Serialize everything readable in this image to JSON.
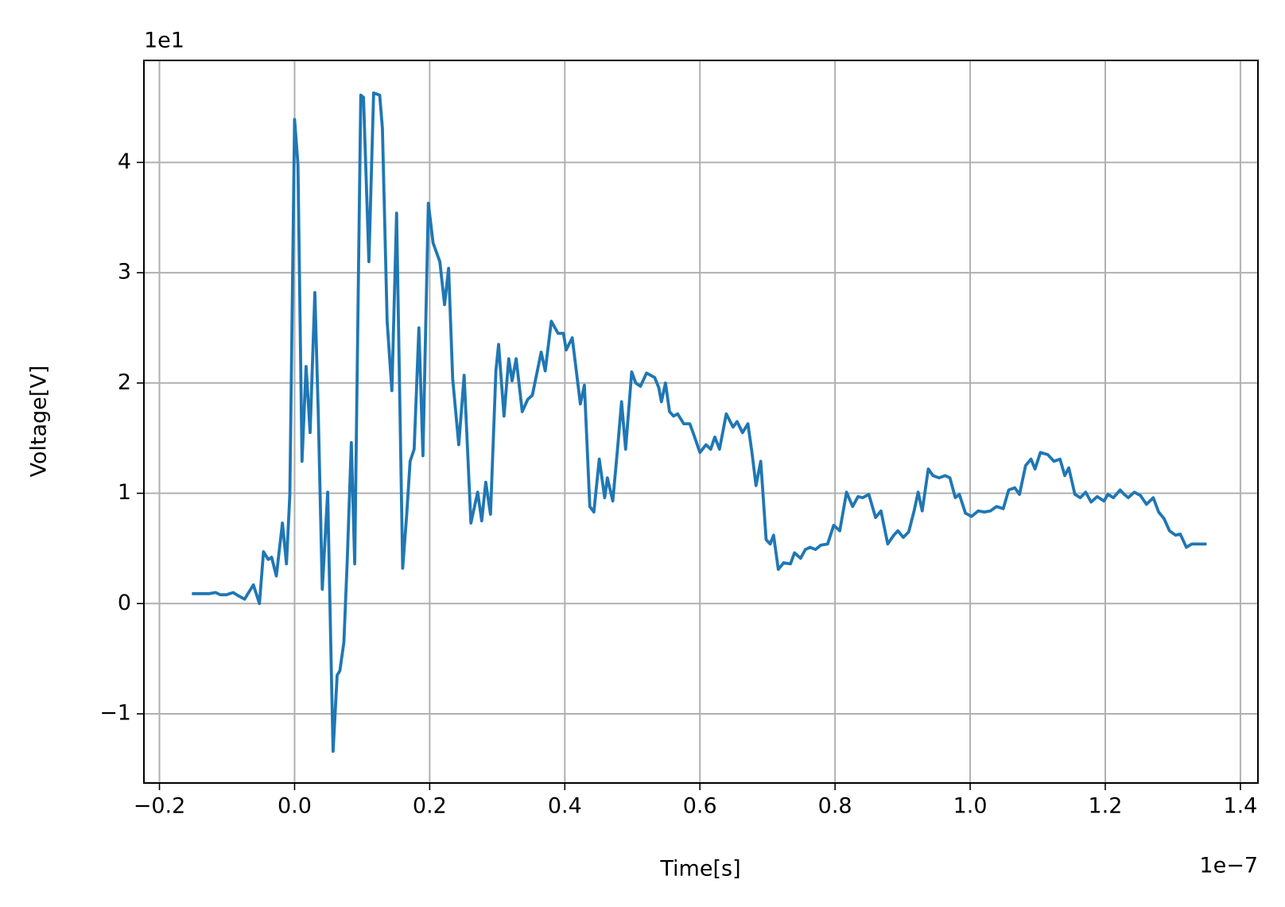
{
  "chart_data": {
    "type": "line",
    "xlabel": "Time[s]",
    "ylabel": "Voltage[V]",
    "x_offset_label": "1e−7",
    "y_offset_label": "1e1",
    "color": "#1f77b4",
    "grid": true,
    "xlim": [
      -0.223,
      1.426
    ],
    "ylim": [
      -1.627,
      4.925
    ],
    "xticks": [
      {
        "value": -0.2,
        "label": "−0.2"
      },
      {
        "value": 0,
        "label": "0.0"
      },
      0.2,
      0.4,
      0.6,
      0.8,
      {
        "value": 1,
        "label": "1.0"
      },
      1.2,
      1.4
    ],
    "yticks": [
      {
        "value": -1,
        "label": "−1"
      },
      0,
      1,
      2,
      3,
      4
    ],
    "x": [
      -0.152,
      -0.138,
      -0.126,
      -0.117,
      -0.11,
      -0.101,
      -0.091,
      -0.083,
      -0.074,
      -0.061,
      -0.052,
      -0.046,
      -0.039,
      -0.034,
      -0.027,
      -0.018,
      -0.012,
      -0.007,
      0.0,
      0.005,
      0.011,
      0.017,
      0.023,
      0.03,
      0.035,
      0.041,
      0.049,
      0.054,
      0.057,
      0.063,
      0.067,
      0.073,
      0.078,
      0.084,
      0.089,
      0.098,
      0.102,
      0.11,
      0.117,
      0.126,
      0.13,
      0.137,
      0.144,
      0.151,
      0.16,
      0.166,
      0.171,
      0.177,
      0.184,
      0.19,
      0.198,
      0.205,
      0.215,
      0.222,
      0.228,
      0.234,
      0.243,
      0.251,
      0.261,
      0.271,
      0.277,
      0.283,
      0.29,
      0.298,
      0.302,
      0.31,
      0.317,
      0.322,
      0.328,
      0.337,
      0.345,
      0.352,
      0.365,
      0.371,
      0.38,
      0.39,
      0.398,
      0.402,
      0.411,
      0.423,
      0.429,
      0.437,
      0.443,
      0.451,
      0.459,
      0.463,
      0.471,
      0.478,
      0.484,
      0.49,
      0.499,
      0.505,
      0.512,
      0.521,
      0.533,
      0.539,
      0.543,
      0.549,
      0.555,
      0.561,
      0.567,
      0.576,
      0.585,
      0.591,
      0.6,
      0.609,
      0.616,
      0.622,
      0.629,
      0.639,
      0.649,
      0.655,
      0.663,
      0.671,
      0.677,
      0.683,
      0.69,
      0.698,
      0.704,
      0.709,
      0.716,
      0.724,
      0.734,
      0.74,
      0.749,
      0.756,
      0.763,
      0.771,
      0.779,
      0.789,
      0.798,
      0.807,
      0.817,
      0.826,
      0.834,
      0.841,
      0.85,
      0.86,
      0.868,
      0.878,
      0.887,
      0.893,
      0.901,
      0.909,
      0.917,
      0.923,
      0.929,
      0.938,
      0.945,
      0.954,
      0.963,
      0.97,
      0.978,
      0.984,
      0.993,
      1.002,
      1.012,
      1.021,
      1.03,
      1.039,
      1.049,
      1.057,
      1.066,
      1.073,
      1.082,
      1.09,
      1.096,
      1.104,
      1.115,
      1.124,
      1.133,
      1.14,
      1.146,
      1.155,
      1.163,
      1.171,
      1.179,
      1.188,
      1.198,
      1.204,
      1.212,
      1.222,
      1.228,
      1.234,
      1.243,
      1.252,
      1.261,
      1.271,
      1.279,
      1.287,
      1.295,
      1.304,
      1.311,
      1.32,
      1.328,
      1.338,
      1.35
    ],
    "values": [
      0.09,
      0.09,
      0.09,
      0.1,
      0.08,
      0.08,
      0.1,
      0.07,
      0.04,
      0.17,
      0.0,
      0.47,
      0.4,
      0.42,
      0.25,
      0.73,
      0.36,
      0.99,
      4.39,
      3.98,
      1.29,
      2.15,
      1.55,
      2.82,
      1.74,
      0.13,
      1.01,
      -0.5,
      -1.34,
      -0.65,
      -0.61,
      -0.35,
      0.4,
      1.46,
      0.36,
      4.61,
      4.59,
      3.1,
      4.63,
      4.61,
      4.31,
      2.56,
      1.93,
      3.54,
      0.32,
      0.81,
      1.29,
      1.4,
      2.5,
      1.34,
      3.63,
      3.27,
      3.1,
      2.71,
      3.04,
      2.04,
      1.44,
      2.07,
      0.73,
      1.01,
      0.75,
      1.1,
      0.81,
      2.11,
      2.35,
      1.7,
      2.22,
      2.02,
      2.22,
      1.74,
      1.85,
      1.89,
      2.28,
      2.11,
      2.56,
      2.45,
      2.45,
      2.3,
      2.41,
      1.81,
      1.98,
      0.88,
      0.83,
      1.31,
      0.96,
      1.14,
      0.93,
      1.4,
      1.83,
      1.4,
      2.1,
      2.0,
      1.97,
      2.09,
      2.05,
      1.96,
      1.83,
      2.0,
      1.74,
      1.7,
      1.72,
      1.63,
      1.63,
      1.53,
      1.37,
      1.44,
      1.4,
      1.51,
      1.4,
      1.72,
      1.6,
      1.65,
      1.55,
      1.63,
      1.37,
      1.07,
      1.29,
      0.58,
      0.54,
      0.62,
      0.31,
      0.37,
      0.36,
      0.46,
      0.41,
      0.49,
      0.51,
      0.49,
      0.53,
      0.54,
      0.71,
      0.66,
      1.01,
      0.88,
      0.97,
      0.96,
      0.99,
      0.78,
      0.84,
      0.54,
      0.62,
      0.66,
      0.6,
      0.65,
      0.84,
      1.01,
      0.84,
      1.22,
      1.16,
      1.14,
      1.16,
      1.14,
      0.96,
      0.99,
      0.82,
      0.79,
      0.84,
      0.83,
      0.84,
      0.88,
      0.86,
      1.03,
      1.05,
      0.99,
      1.25,
      1.31,
      1.22,
      1.37,
      1.35,
      1.29,
      1.31,
      1.16,
      1.23,
      0.99,
      0.96,
      1.01,
      0.92,
      0.97,
      0.93,
      0.99,
      0.96,
      1.03,
      0.99,
      0.96,
      1.01,
      0.98,
      0.9,
      0.96,
      0.83,
      0.77,
      0.66,
      0.62,
      0.63,
      0.51,
      0.54,
      0.54,
      0.54
    ]
  }
}
